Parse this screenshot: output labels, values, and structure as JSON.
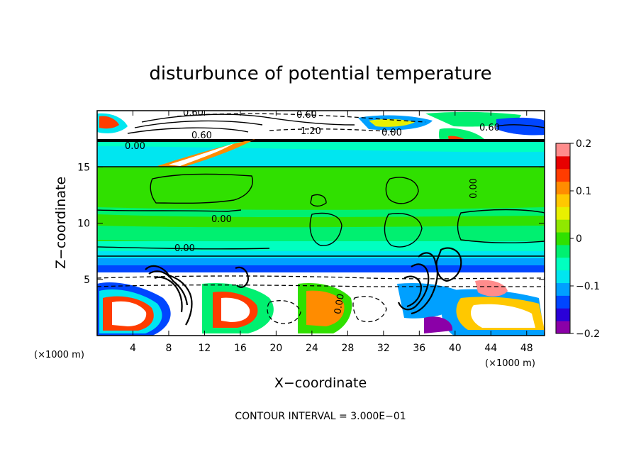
{
  "chart_data": {
    "type": "heatmap",
    "title": "disturbunce of potential temperature",
    "xlabel": "X−coordinate",
    "ylabel": "Z−coordinate",
    "x_unit": "(×1000 m)",
    "y_unit": "(×1000 m)",
    "xlim": [
      0,
      50
    ],
    "ylim": [
      0,
      20
    ],
    "x_ticks": [
      "4",
      "8",
      "12",
      "16",
      "20",
      "24",
      "28",
      "32",
      "36",
      "40",
      "44",
      "48"
    ],
    "y_ticks": [
      "5",
      "10",
      "15"
    ],
    "colorbar": {
      "min": -0.2,
      "max": 0.2,
      "tick_labels": [
        "0.2",
        "0.1",
        "0",
        "−0.1",
        "−0.2"
      ],
      "colors": [
        "#8b00a8",
        "#2a00d8",
        "#0046ff",
        "#00a0ff",
        "#00e6f0",
        "#00ffc0",
        "#00f070",
        "#30e000",
        "#90e800",
        "#e8f000",
        "#ffc800",
        "#ff8c00",
        "#ff3c00",
        "#e80000",
        "#ff8c8c"
      ]
    },
    "contour_labels": [
      "0.60",
      "0.60",
      "0.60",
      "0.60",
      "1.20",
      "0.00",
      "0.00",
      "0.00",
      "0.00",
      "0.00",
      "0.00"
    ],
    "bands": [
      {
        "z_from": 17.3,
        "z_to": 20,
        "level": "mixed"
      },
      {
        "z_from": 15.0,
        "z_to": 17.3,
        "level": -0.03
      },
      {
        "z_from": 7.5,
        "z_to": 15.0,
        "level": 0.0
      },
      {
        "z_from": 5.5,
        "z_to": 7.5,
        "level": -0.12
      },
      {
        "z_from": 0,
        "z_to": 5.5,
        "level": "mixed"
      }
    ],
    "note": "CONTOUR INTERVAL = 3.000E−01"
  }
}
